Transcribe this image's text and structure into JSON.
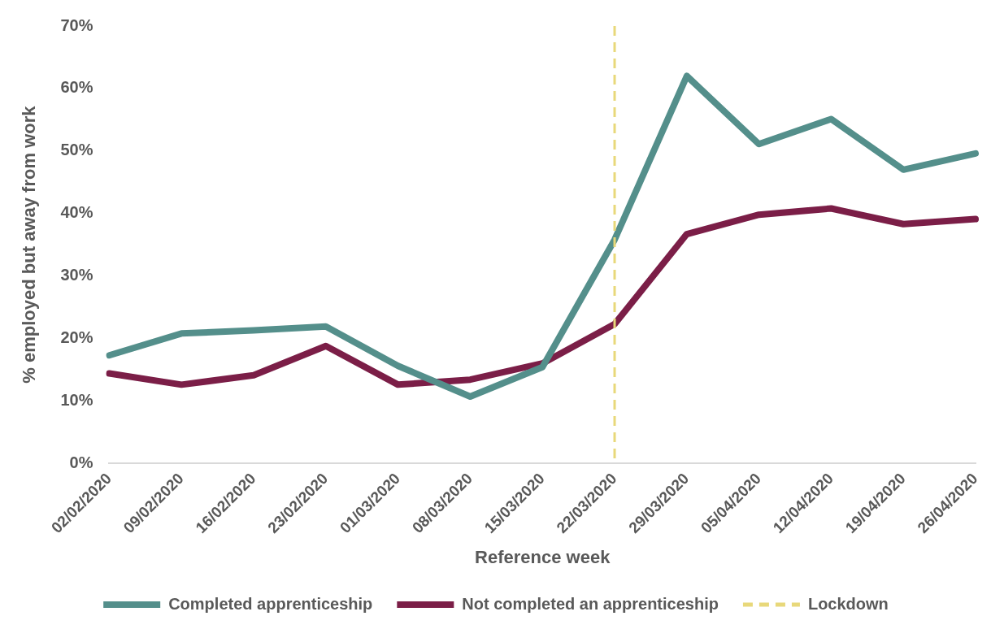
{
  "chart_data": {
    "type": "line",
    "xlabel": "Reference week",
    "ylabel": "% employed but away from work",
    "categories": [
      "02/02/2020",
      "09/02/2020",
      "16/02/2020",
      "23/02/2020",
      "01/03/2020",
      "08/03/2020",
      "15/03/2020",
      "22/03/2020",
      "29/03/2020",
      "05/04/2020",
      "12/04/2020",
      "19/04/2020",
      "26/04/2020"
    ],
    "series": [
      {
        "name": "Completed apprenticeship",
        "color": "#548f8b",
        "values": [
          17.3,
          20.8,
          21.3,
          21.9,
          15.6,
          10.7,
          15.4,
          35.8,
          62.0,
          51.1,
          55.1,
          47.0,
          49.6
        ]
      },
      {
        "name": "Not completed an apprenticeship",
        "color": "#7b1e47",
        "values": [
          14.4,
          12.6,
          14.1,
          18.8,
          12.6,
          13.4,
          16.0,
          22.3,
          36.7,
          39.8,
          40.8,
          38.3,
          39.1
        ]
      }
    ],
    "ylim": [
      0,
      70
    ],
    "yticks": [
      {
        "value": 0,
        "label": "0%"
      },
      {
        "value": 10,
        "label": "10%"
      },
      {
        "value": 20,
        "label": "20%"
      },
      {
        "value": 30,
        "label": "30%"
      },
      {
        "value": 40,
        "label": "40%"
      },
      {
        "value": 50,
        "label": "50%"
      },
      {
        "value": 60,
        "label": "60%"
      },
      {
        "value": 70,
        "label": "70%"
      }
    ],
    "ref_lines": [
      {
        "axis": "x",
        "value": "22/03/2020",
        "label": "Lockdown",
        "color": "#e8d87a",
        "line_style": "dashed"
      }
    ],
    "grid": false,
    "legend": "bottom",
    "marker": "none",
    "line_style": "solid"
  }
}
